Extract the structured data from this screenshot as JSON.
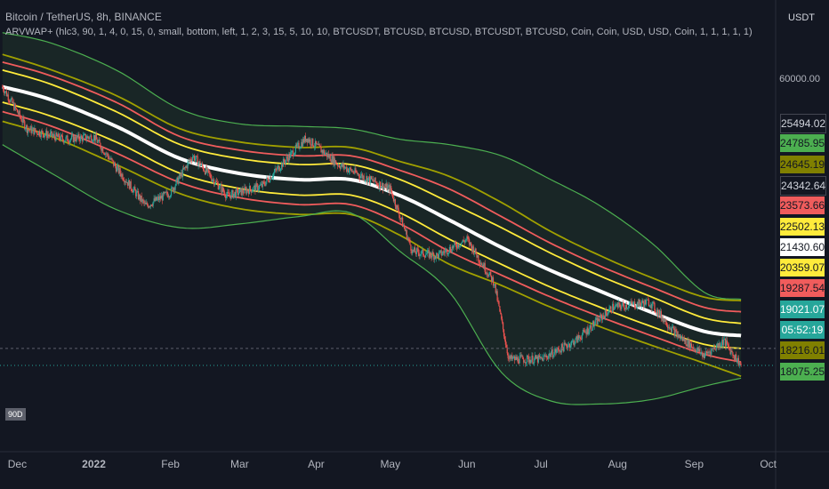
{
  "header": {
    "title": "Bitcoin / TetherUS, 8h, BINANCE",
    "indicator": "ARVWAP+ (hlc3, 90, 1, 4, 0, 15, 0, small, bottom, left, 1, 2, 3, 15, 5, 10, 10, BTCUSDT, BTCUSD, BTCUSD, BTCUSDT, BTCUSD, Coin, Coin, USD, USD, Coin, 1, 1, 1, 1, 1)"
  },
  "badge": "90D",
  "chart_data": {
    "type": "line",
    "title": "Bitcoin / TetherUS, 8h, BINANCE",
    "y_unit": "USDT",
    "log_scale": true,
    "y_tick_labels": [
      "60000.00"
    ],
    "x_tick_labels": [
      "Dec",
      "2022",
      "Feb",
      "Mar",
      "Apr",
      "May",
      "Jun",
      "Jul",
      "Aug",
      "Sep",
      "Oct"
    ],
    "price_tags": [
      {
        "label": "25494.02",
        "value": 25494.02,
        "bg": "#131722",
        "fg": "#d1d4dc"
      },
      {
        "label": "24785.95",
        "value": 24785.95,
        "bg": "#4caf50",
        "fg": "#131722"
      },
      {
        "label": "24645.19",
        "value": 24645.19,
        "bg": "#808000",
        "fg": "#131722"
      },
      {
        "label": "24342.64",
        "value": 24342.64,
        "bg": "#131722",
        "fg": "#d1d4dc"
      },
      {
        "label": "23573.66",
        "value": 23573.66,
        "bg": "#f05c5c",
        "fg": "#131722"
      },
      {
        "label": "22502.13",
        "value": 22502.13,
        "bg": "#ffeb3b",
        "fg": "#131722"
      },
      {
        "label": "21430.60",
        "value": 21430.6,
        "bg": "#ffffff",
        "fg": "#131722"
      },
      {
        "label": "20359.07",
        "value": 20359.07,
        "bg": "#ffeb3b",
        "fg": "#131722"
      },
      {
        "label": "19287.54",
        "value": 19287.54,
        "bg": "#f05c5c",
        "fg": "#131722"
      },
      {
        "label": "19021.07",
        "value": 19021.07,
        "bg": "#26a69a",
        "fg": "#ffffff"
      },
      {
        "label": "05:52:19",
        "value": null,
        "bg": "#26a69a",
        "fg": "#ffffff"
      },
      {
        "label": "18216.01",
        "value": 18216.01,
        "bg": "#808000",
        "fg": "#131722"
      },
      {
        "label": "18075.25",
        "value": 18075.25,
        "bg": "#4caf50",
        "fg": "#131722"
      }
    ],
    "bands": {
      "x": [
        "2021-11-25",
        "2021-12-15",
        "2022-01-10",
        "2022-02-05",
        "2022-03-01",
        "2022-03-25",
        "2022-04-15",
        "2022-05-05",
        "2022-05-25",
        "2022-06-15",
        "2022-07-05",
        "2022-07-25",
        "2022-08-15",
        "2022-09-05",
        "2022-09-20"
      ],
      "series": [
        {
          "line": "green-outer-upper",
          "color": "#4caf50",
          "width": 1.2,
          "values": [
            72000,
            69000,
            62000,
            53000,
            50000,
            49500,
            49000,
            47000,
            46000,
            44000,
            40000,
            36000,
            31000,
            25500,
            24786
          ]
        },
        {
          "line": "olive-upper",
          "color": "#a0a000",
          "width": 1.8,
          "values": [
            66000,
            62000,
            56000,
            49000,
            46500,
            45500,
            45500,
            43000,
            40500,
            36500,
            32500,
            29500,
            27000,
            25000,
            24645
          ]
        },
        {
          "line": "red-upper",
          "color": "#f05c5c",
          "width": 1.8,
          "values": [
            64000,
            60500,
            54500,
            47500,
            45000,
            44000,
            44000,
            41500,
            38500,
            34500,
            31000,
            28300,
            26000,
            24000,
            23574
          ]
        },
        {
          "line": "yellow-upper",
          "color": "#ffeb3b",
          "width": 1.8,
          "values": [
            62000,
            58500,
            52500,
            46000,
            43500,
            42500,
            42500,
            40000,
            36500,
            33000,
            29800,
            27200,
            25000,
            23000,
            22502
          ]
        },
        {
          "line": "vwap",
          "color": "#ffffff",
          "width": 4.0,
          "values": [
            58000,
            55000,
            49500,
            43500,
            41000,
            40000,
            40000,
            37500,
            34000,
            30500,
            27800,
            25600,
            23500,
            21800,
            21431
          ]
        },
        {
          "line": "yellow-lower",
          "color": "#ffeb3b",
          "width": 1.8,
          "values": [
            54500,
            51500,
            46500,
            41000,
            38600,
            37600,
            37600,
            35000,
            31500,
            28500,
            26000,
            24000,
            22200,
            20700,
            20359
          ]
        },
        {
          "line": "red-lower",
          "color": "#f05c5c",
          "width": 1.8,
          "values": [
            52500,
            49500,
            44500,
            39500,
            37200,
            36200,
            36200,
            33500,
            30000,
            27300,
            25000,
            23100,
            21400,
            19900,
            19288
          ]
        },
        {
          "line": "olive-lower",
          "color": "#a0a000",
          "width": 1.8,
          "values": [
            50500,
            47500,
            42500,
            37800,
            35600,
            34800,
            34800,
            32000,
            28500,
            26200,
            24000,
            22200,
            20600,
            19200,
            18216
          ]
        },
        {
          "line": "green-outer-lower",
          "color": "#4caf50",
          "width": 1.2,
          "values": [
            46000,
            41000,
            35500,
            33000,
            33500,
            34500,
            35000,
            30000,
            25500,
            18500,
            16500,
            16300,
            16600,
            17500,
            18075
          ]
        }
      ]
    },
    "price": {
      "x": [
        "2021-11-25",
        "2021-12-05",
        "2021-12-20",
        "2022-01-01",
        "2022-01-10",
        "2022-01-22",
        "2022-02-01",
        "2022-02-10",
        "2022-02-24",
        "2022-03-10",
        "2022-03-28",
        "2022-04-10",
        "2022-04-20",
        "2022-05-01",
        "2022-05-10",
        "2022-05-20",
        "2022-06-01",
        "2022-06-12",
        "2022-06-18",
        "2022-07-01",
        "2022-07-15",
        "2022-07-30",
        "2022-08-14",
        "2022-08-25",
        "2022-09-05",
        "2022-09-13",
        "2022-09-20"
      ],
      "values": [
        58000,
        49000,
        47000,
        47500,
        42000,
        36000,
        38000,
        44000,
        37500,
        39000,
        47300,
        42500,
        40500,
        38500,
        30000,
        29500,
        31500,
        26500,
        19500,
        19500,
        21000,
        24000,
        24500,
        21500,
        19800,
        21000,
        19021
      ]
    }
  }
}
